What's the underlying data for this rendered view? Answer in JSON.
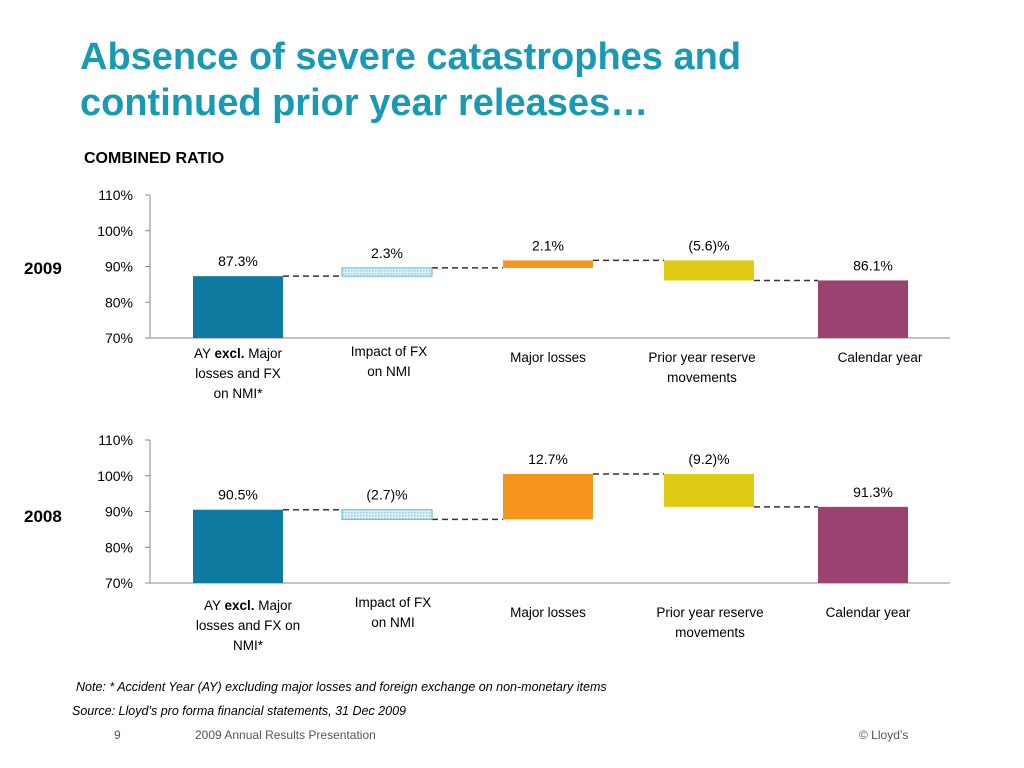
{
  "slide": {
    "title_line1": "Absence of severe catastrophes and",
    "title_line2": "continued prior year releases…",
    "subtitle": "COMBINED RATIO",
    "note": "Note: * Accident Year (AY) excluding major losses and foreign exchange on non-monetary items",
    "source": "Source: Lloyd’s pro forma financial statements, 31 Dec 2009",
    "page_number": "9",
    "presentation_name": "2009 Annual Results Presentation",
    "copyright": "© Lloyd’s",
    "title_color": "#1899B4"
  },
  "chart_data": [
    {
      "type": "bar",
      "subtype": "waterfall",
      "year_label": "2009",
      "ylim": [
        70,
        110
      ],
      "yticks": [
        "110%",
        "100%",
        "90%",
        "80%",
        "70%"
      ],
      "categories": [
        "AY excl. Major losses and FX on NMI*",
        "Impact of FX on NMI",
        "Major losses",
        "Prior year reserve movements",
        "Calendar year"
      ],
      "values": [
        87.3,
        2.3,
        2.1,
        -5.6,
        86.1
      ],
      "data_labels": [
        "87.3%",
        "2.3%",
        "2.1%",
        "(5.6)%",
        "86.1%"
      ],
      "colors": [
        "#0F7A9F",
        "#8CCFE0",
        "#F7941D",
        "#DDCB14",
        "#9B4370"
      ],
      "connectors": "dashed",
      "grid": false
    },
    {
      "type": "bar",
      "subtype": "waterfall",
      "year_label": "2008",
      "ylim": [
        70,
        110
      ],
      "yticks": [
        "110%",
        "100%",
        "90%",
        "80%",
        "70%"
      ],
      "categories": [
        "AY excl. Major losses and FX on NMI*",
        "Impact of FX on NMI",
        "Major losses",
        "Prior year reserve movements",
        "Calendar year"
      ],
      "values": [
        90.5,
        -2.7,
        12.7,
        -9.2,
        91.3
      ],
      "data_labels": [
        "90.5%",
        "(2.7)%",
        "12.7%",
        "(9.2)%",
        "91.3%"
      ],
      "colors": [
        "#0F7A9F",
        "#8CCFE0",
        "#F7941D",
        "#DDCB14",
        "#9B4370"
      ],
      "connectors": "dashed",
      "grid": false
    }
  ]
}
